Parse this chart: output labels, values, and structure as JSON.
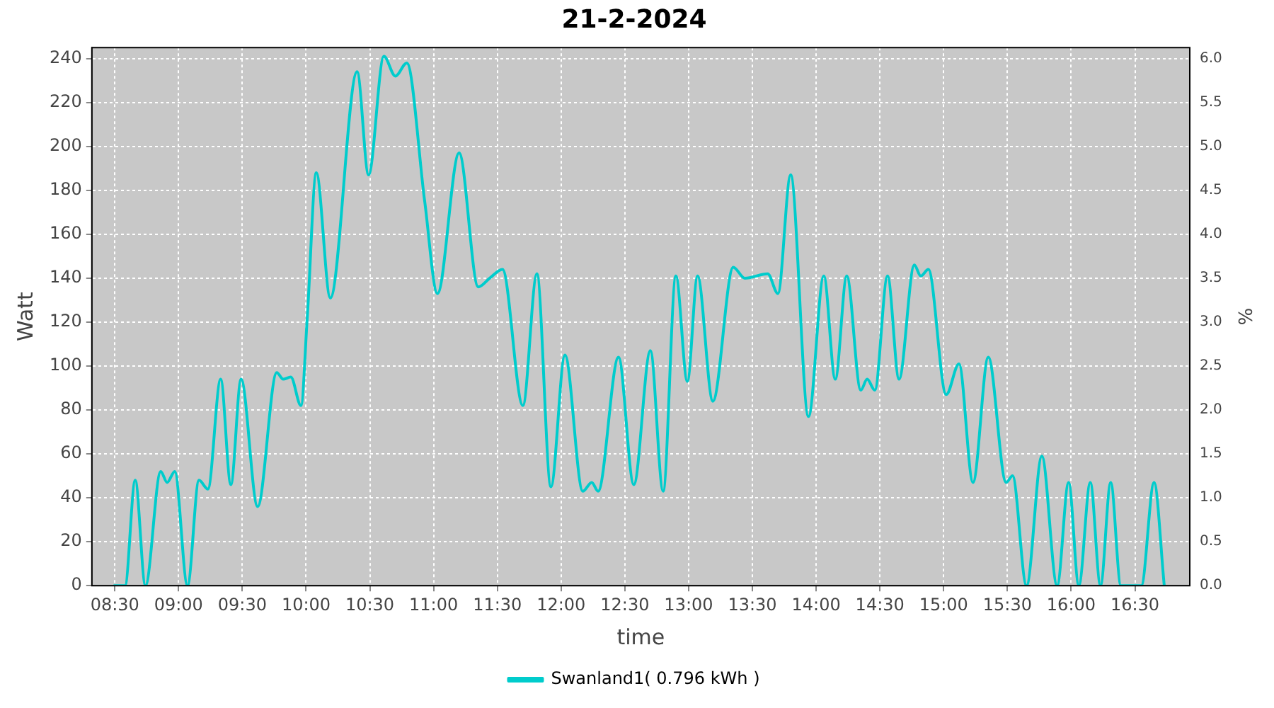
{
  "chart_data": {
    "type": "line",
    "title": "21-2-2024",
    "xlabel": "time",
    "ylabel": "Watt",
    "y2label": "%",
    "xlim": [
      8.32,
      16.93
    ],
    "xticks": [
      {
        "value": 8.5,
        "label": "08:30"
      },
      {
        "value": 9,
        "label": "09:00"
      },
      {
        "value": 9.5,
        "label": "09:30"
      },
      {
        "value": 10,
        "label": "10:00"
      },
      {
        "value": 10.5,
        "label": "10:30"
      },
      {
        "value": 11,
        "label": "11:00"
      },
      {
        "value": 11.5,
        "label": "11:30"
      },
      {
        "value": 12,
        "label": "12:00"
      },
      {
        "value": 12.5,
        "label": "12:30"
      },
      {
        "value": 13,
        "label": "13:00"
      },
      {
        "value": 13.5,
        "label": "13:30"
      },
      {
        "value": 14,
        "label": "14:00"
      },
      {
        "value": 14.5,
        "label": "14:30"
      },
      {
        "value": 15,
        "label": "15:00"
      },
      {
        "value": 15.5,
        "label": "15:30"
      },
      {
        "value": 16,
        "label": "16:00"
      },
      {
        "value": 16.5,
        "label": "16:30"
      }
    ],
    "ylim": [
      0,
      245
    ],
    "yticks": [
      0,
      20,
      40,
      60,
      80,
      100,
      120,
      140,
      160,
      180,
      200,
      220,
      240
    ],
    "y2lim": [
      0,
      6.125
    ],
    "y2ticks": [
      {
        "value": 0,
        "label": "0.0"
      },
      {
        "value": 0.5,
        "label": "0.5"
      },
      {
        "value": 1,
        "label": "1.0"
      },
      {
        "value": 1.5,
        "label": "1.5"
      },
      {
        "value": 2,
        "label": "2.0"
      },
      {
        "value": 2.5,
        "label": "2.5"
      },
      {
        "value": 3,
        "label": "3.0"
      },
      {
        "value": 3.5,
        "label": "3.5"
      },
      {
        "value": 4,
        "label": "4.0"
      },
      {
        "value": 4.5,
        "label": "4.5"
      },
      {
        "value": 5,
        "label": "5.0"
      },
      {
        "value": 5.5,
        "label": "5.5"
      },
      {
        "value": 6,
        "label": "6.0"
      }
    ],
    "grid": true,
    "legend": "bottom",
    "marker": "none",
    "line_style": "solid",
    "series": [
      {
        "name": "Swanland1( 0.796 kWh )",
        "color": "#00cccc",
        "x": [
          8.49,
          8.58,
          8.66,
          8.74,
          8.86,
          8.91,
          8.97,
          9.07,
          9.16,
          9.23,
          9.33,
          9.41,
          9.49,
          9.62,
          9.77,
          9.82,
          9.88,
          9.96,
          10.01,
          10.08,
          10.19,
          10.4,
          10.49,
          10.61,
          10.7,
          10.79,
          10.93,
          11.03,
          11.2,
          11.35,
          11.44,
          11.54,
          11.7,
          11.81,
          11.92,
          12.03,
          12.17,
          12.24,
          12.29,
          12.45,
          12.57,
          12.7,
          12.8,
          12.9,
          12.99,
          13.07,
          13.19,
          13.35,
          13.44,
          13.62,
          13.7,
          13.8,
          13.94,
          14.06,
          14.15,
          14.24,
          14.35,
          14.4,
          14.46,
          14.56,
          14.65,
          14.77,
          14.82,
          14.88,
          15.02,
          15.12,
          15.23,
          15.35,
          15.49,
          15.54,
          15.65,
          15.77,
          15.89,
          15.98,
          16.06,
          16.15,
          16.23,
          16.31,
          16.39,
          16.55,
          16.65,
          16.73
        ],
        "values": [
          0,
          0,
          48,
          0,
          52,
          47,
          52,
          0,
          48,
          44,
          94,
          46,
          94,
          36,
          97,
          94,
          95,
          82,
          123,
          188,
          131,
          234,
          187,
          241,
          232,
          238,
          175,
          133,
          197,
          136,
          140,
          144,
          82,
          142,
          45,
          105,
          43,
          47,
          43,
          104,
          46,
          107,
          43,
          141,
          93,
          141,
          84,
          145,
          140,
          142,
          133,
          187,
          77,
          141,
          94,
          141,
          89,
          94,
          89,
          141,
          94,
          146,
          141,
          144,
          87,
          101,
          47,
          104,
          47,
          50,
          0,
          59,
          0,
          47,
          0,
          47,
          0,
          47,
          0,
          0,
          47,
          0
        ]
      }
    ]
  }
}
